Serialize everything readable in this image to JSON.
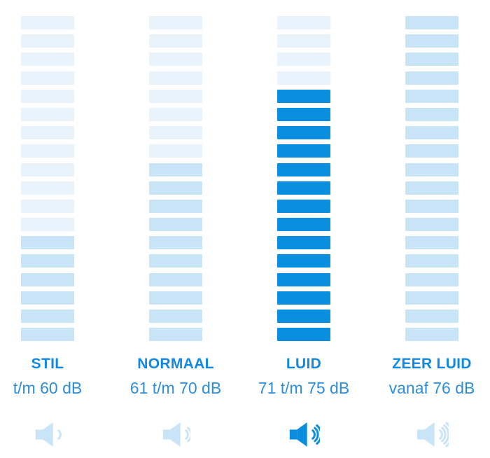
{
  "colors": {
    "background": "#ffffff",
    "bar_light": "#e8f3fc",
    "bar_medium": "#c9e3f7",
    "bar_active": "#0a8ee0",
    "icon_light": "#c9e3f7",
    "icon_active": "#0a8ee0",
    "title_text": "#1289e0",
    "range_text": "#2e8ed9"
  },
  "chart_data": {
    "type": "bar",
    "title": "",
    "categories": [
      "STIL",
      "NORMAAL",
      "LUID",
      "ZEER LUID"
    ],
    "category_sublabels": [
      "t/m 60 dB",
      "61 t/m 70 dB",
      "71 t/m 75 dB",
      "vanaf 76 dB"
    ],
    "segments_per_column": 18,
    "series": [
      {
        "name": "filled_segments_from_bottom",
        "values": [
          6,
          10,
          14,
          18
        ]
      }
    ],
    "highlighted_category": "LUID",
    "speaker_wave_counts": [
      1,
      2,
      3,
      4
    ],
    "grid": false,
    "legend_position": "none"
  },
  "chart": {
    "segments_per_column": 18,
    "columns": [
      {
        "id": "stil",
        "title": "STIL",
        "range": "t/m 60 dB",
        "filled_segments": 6,
        "fill_color": "bar_medium",
        "icon_waves": 1,
        "icon_color": "icon_light"
      },
      {
        "id": "normaal",
        "title": "NORMAAL",
        "range": "61 t/m 70 dB",
        "filled_segments": 10,
        "fill_color": "bar_medium",
        "icon_waves": 2,
        "icon_color": "icon_light"
      },
      {
        "id": "luid",
        "title": "LUID",
        "range": "71 t/m 75 dB",
        "filled_segments": 14,
        "fill_color": "bar_active",
        "icon_waves": 3,
        "icon_color": "icon_active"
      },
      {
        "id": "zeer-luid",
        "title": "ZEER LUID",
        "range": "vanaf 76 dB",
        "filled_segments": 18,
        "fill_color": "bar_medium",
        "icon_waves": 4,
        "icon_color": "icon_light"
      }
    ]
  }
}
